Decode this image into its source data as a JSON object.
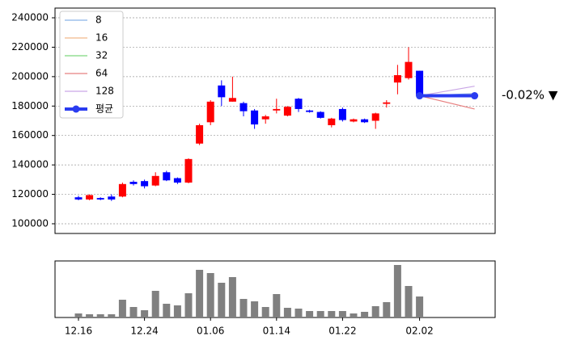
{
  "chart_data": [
    {
      "type": "candlestick",
      "ylim": [
        93400,
        246600
      ],
      "yticks": [
        100000,
        120000,
        140000,
        160000,
        180000,
        200000,
        220000,
        240000
      ],
      "grid": true,
      "legend": "upper left",
      "up_color": "#ff0000",
      "down_color": "#0000ff",
      "open": [
        118000,
        116500,
        117500,
        118500,
        118500,
        128500,
        129000,
        126000,
        135000,
        131000,
        128000,
        154500,
        169000,
        194000,
        183000,
        182000,
        177000,
        171000,
        177000,
        173500,
        185000,
        177000,
        176000,
        167000,
        178000,
        169500,
        171000,
        170000,
        181500,
        196000,
        199000,
        204000
      ],
      "high": [
        119000,
        120000,
        118000,
        120000,
        128000,
        129500,
        130000,
        135000,
        136000,
        131500,
        144500,
        168000,
        184000,
        197500,
        200000,
        183000,
        178000,
        174000,
        185000,
        180000,
        185500,
        177500,
        176500,
        172000,
        179000,
        171500,
        171500,
        175500,
        184000,
        208000,
        220000,
        204000
      ],
      "low": [
        116000,
        116000,
        116000,
        115500,
        118000,
        126000,
        124000,
        125500,
        129000,
        127000,
        127500,
        153500,
        167000,
        180000,
        183000,
        173000,
        164500,
        168000,
        175000,
        173000,
        176000,
        175500,
        171500,
        165500,
        169500,
        169000,
        168500,
        164500,
        179000,
        188000,
        198000,
        186000
      ],
      "close": [
        116500,
        119500,
        116500,
        116500,
        127000,
        127000,
        125500,
        132500,
        129500,
        128000,
        144000,
        167000,
        183000,
        186000,
        185500,
        176500,
        167500,
        173000,
        178000,
        179500,
        178000,
        176000,
        172000,
        171500,
        170500,
        171000,
        169000,
        175000,
        182500,
        201000,
        210000,
        187000
      ],
      "series": [
        {
          "name": "8",
          "color": "#8ab4e8",
          "values": [
            187000,
            188500
          ]
        },
        {
          "name": "16",
          "color": "#f2b98a",
          "values": [
            187000,
            188000
          ]
        },
        {
          "name": "32",
          "color": "#7fd67f",
          "values": [
            187000,
            187500
          ]
        },
        {
          "name": "64",
          "color": "#e88080",
          "values": [
            187000,
            178000
          ]
        },
        {
          "name": "128",
          "color": "#c9a6e6",
          "values": [
            187000,
            193500
          ]
        },
        {
          "name": "평균",
          "color": "#2a3cf0",
          "values": [
            187000,
            187000
          ]
        }
      ],
      "annotation": "-0.02% ▼",
      "annotation_color": "#1a1aff"
    },
    {
      "type": "bar",
      "color": "#808080",
      "ylim": [
        0,
        70
      ],
      "categories": [
        "12.16",
        null,
        null,
        null,
        null,
        null,
        "12.24",
        null,
        null,
        null,
        null,
        null,
        "01.06",
        null,
        null,
        null,
        null,
        null,
        "01.14",
        null,
        null,
        null,
        null,
        null,
        "01.22",
        null,
        null,
        null,
        null,
        null,
        null,
        "02.02"
      ],
      "values": [
        5,
        4,
        4,
        4,
        22,
        13,
        9,
        33,
        17,
        15,
        30,
        59,
        55,
        43,
        50,
        23,
        20,
        13,
        29,
        12,
        11,
        8,
        8,
        8,
        8,
        5,
        7,
        14,
        19,
        65,
        39,
        26
      ]
    }
  ]
}
